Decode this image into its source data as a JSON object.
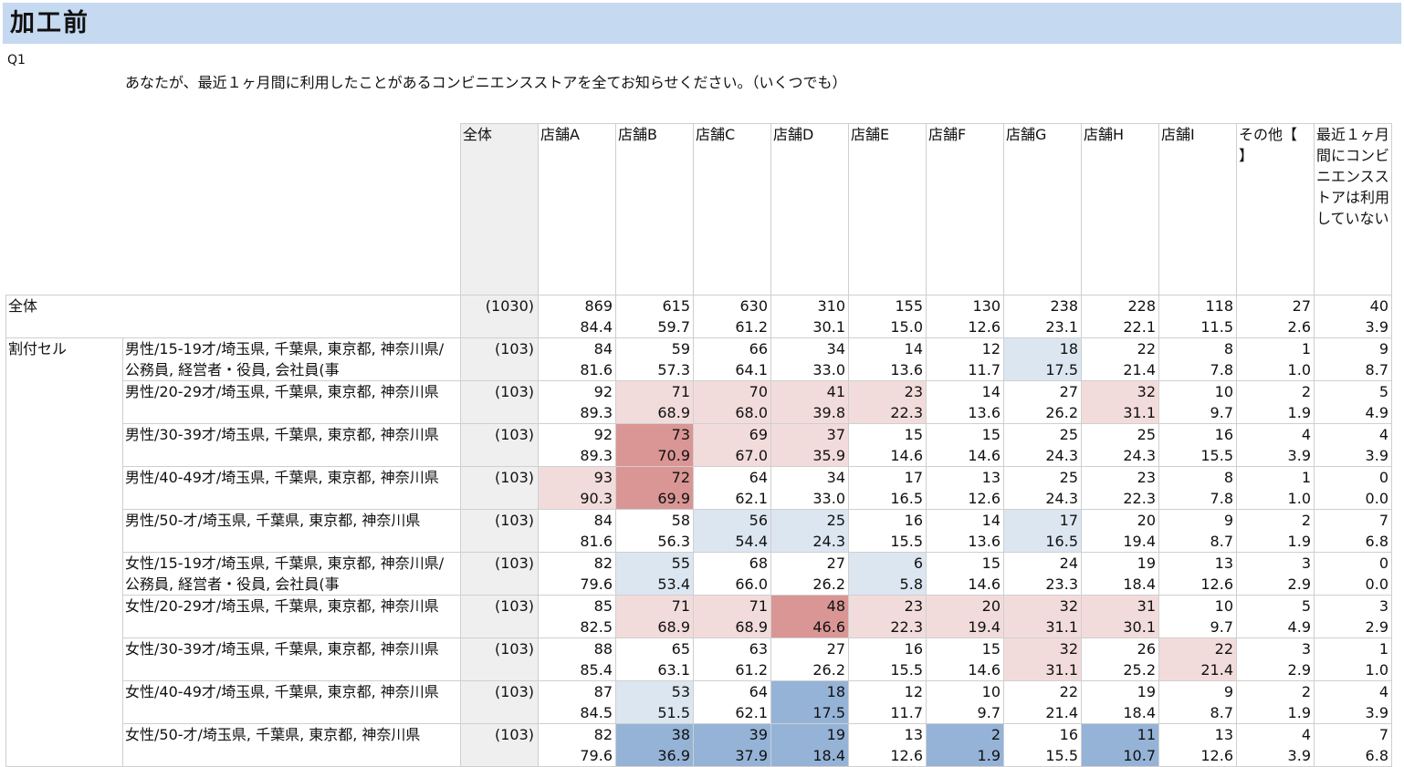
{
  "banner": {
    "title": "加工前"
  },
  "question": {
    "id": "Q1",
    "text": "あなたが、最近１ヶ月間に利用したことがあるコンビニエンスストアを全てお知らせください。（いくつでも）"
  },
  "table": {
    "total_header": "全体",
    "columns": [
      "店舗A",
      "店舗B",
      "店舗C",
      "店舗D",
      "店舗E",
      "店舗F",
      "店舗G",
      "店舗H",
      "店舗I",
      "その他【　　】",
      "最近１ヶ月間にコンビニエンスストアは利用していない"
    ],
    "overall": {
      "label": "全体",
      "base": "(1030)",
      "counts": [
        "869",
        "615",
        "630",
        "310",
        "155",
        "130",
        "238",
        "228",
        "118",
        "27",
        "40"
      ],
      "pcts": [
        "84.4",
        "59.7",
        "61.2",
        "30.1",
        "15.0",
        "12.6",
        "23.1",
        "22.1",
        "11.5",
        "2.6",
        "3.9"
      ]
    },
    "group_label": "割付セル",
    "rows": [
      {
        "label": "男性/15-19才/埼玉県, 千葉県, 東京都, 神奈川県/公務員, 経営者・役員, 会社員(事",
        "base": "(103)",
        "counts": [
          "84",
          "59",
          "66",
          "34",
          "14",
          "12",
          "18",
          "22",
          "8",
          "1",
          "9"
        ],
        "pcts": [
          "81.6",
          "57.3",
          "64.1",
          "33.0",
          "13.6",
          "11.7",
          "17.5",
          "21.4",
          "7.8",
          "1.0",
          "8.7"
        ],
        "shade": [
          "",
          "",
          "",
          "",
          "",
          "",
          "bl",
          "",
          "",
          "",
          ""
        ]
      },
      {
        "label": "男性/20-29才/埼玉県, 千葉県, 東京都, 神奈川県",
        "base": "(103)",
        "counts": [
          "92",
          "71",
          "70",
          "41",
          "23",
          "14",
          "27",
          "32",
          "10",
          "2",
          "5"
        ],
        "pcts": [
          "89.3",
          "68.9",
          "68.0",
          "39.8",
          "22.3",
          "13.6",
          "26.2",
          "31.1",
          "9.7",
          "1.9",
          "4.9"
        ],
        "shade": [
          "",
          "rl",
          "rl",
          "rl",
          "rl",
          "",
          "",
          "rl",
          "",
          "",
          ""
        ]
      },
      {
        "label": "男性/30-39才/埼玉県, 千葉県, 東京都, 神奈川県",
        "base": "(103)",
        "counts": [
          "92",
          "73",
          "69",
          "37",
          "15",
          "15",
          "25",
          "25",
          "16",
          "4",
          "4"
        ],
        "pcts": [
          "89.3",
          "70.9",
          "67.0",
          "35.9",
          "14.6",
          "14.6",
          "24.3",
          "24.3",
          "15.5",
          "3.9",
          "3.9"
        ],
        "shade": [
          "",
          "rd",
          "rl",
          "rl",
          "",
          "",
          "",
          "",
          "",
          "",
          ""
        ]
      },
      {
        "label": "男性/40-49才/埼玉県, 千葉県, 東京都, 神奈川県",
        "base": "(103)",
        "counts": [
          "93",
          "72",
          "64",
          "34",
          "17",
          "13",
          "25",
          "23",
          "8",
          "1",
          "0"
        ],
        "pcts": [
          "90.3",
          "69.9",
          "62.1",
          "33.0",
          "16.5",
          "12.6",
          "24.3",
          "22.3",
          "7.8",
          "1.0",
          "0.0"
        ],
        "shade": [
          "rl",
          "rd",
          "",
          "",
          "",
          "",
          "",
          "",
          "",
          "",
          ""
        ]
      },
      {
        "label": "男性/50-才/埼玉県, 千葉県, 東京都, 神奈川県",
        "base": "(103)",
        "counts": [
          "84",
          "58",
          "56",
          "25",
          "16",
          "14",
          "17",
          "20",
          "9",
          "2",
          "7"
        ],
        "pcts": [
          "81.6",
          "56.3",
          "54.4",
          "24.3",
          "15.5",
          "13.6",
          "16.5",
          "19.4",
          "8.7",
          "1.9",
          "6.8"
        ],
        "shade": [
          "",
          "",
          "bl",
          "bl",
          "",
          "",
          "bl",
          "",
          "",
          "",
          ""
        ]
      },
      {
        "label": "女性/15-19才/埼玉県, 千葉県, 東京都, 神奈川県/公務員, 経営者・役員, 会社員(事",
        "base": "(103)",
        "counts": [
          "82",
          "55",
          "68",
          "27",
          "6",
          "15",
          "24",
          "19",
          "13",
          "3",
          "0"
        ],
        "pcts": [
          "79.6",
          "53.4",
          "66.0",
          "26.2",
          "5.8",
          "14.6",
          "23.3",
          "18.4",
          "12.6",
          "2.9",
          "0.0"
        ],
        "shade": [
          "",
          "bl",
          "",
          "",
          "bl",
          "",
          "",
          "",
          "",
          "",
          ""
        ]
      },
      {
        "label": "女性/20-29才/埼玉県, 千葉県, 東京都, 神奈川県",
        "base": "(103)",
        "counts": [
          "85",
          "71",
          "71",
          "48",
          "23",
          "20",
          "32",
          "31",
          "10",
          "5",
          "3"
        ],
        "pcts": [
          "82.5",
          "68.9",
          "68.9",
          "46.6",
          "22.3",
          "19.4",
          "31.1",
          "30.1",
          "9.7",
          "4.9",
          "2.9"
        ],
        "shade": [
          "",
          "rl",
          "rl",
          "rd",
          "rl",
          "rl",
          "rl",
          "rl",
          "",
          "",
          ""
        ]
      },
      {
        "label": "女性/30-39才/埼玉県, 千葉県, 東京都, 神奈川県",
        "base": "(103)",
        "counts": [
          "88",
          "65",
          "63",
          "27",
          "16",
          "15",
          "32",
          "26",
          "22",
          "3",
          "1"
        ],
        "pcts": [
          "85.4",
          "63.1",
          "61.2",
          "26.2",
          "15.5",
          "14.6",
          "31.1",
          "25.2",
          "21.4",
          "2.9",
          "1.0"
        ],
        "shade": [
          "",
          "",
          "",
          "",
          "",
          "",
          "rl",
          "",
          "rl",
          "",
          ""
        ]
      },
      {
        "label": "女性/40-49才/埼玉県, 千葉県, 東京都, 神奈川県",
        "base": "(103)",
        "counts": [
          "87",
          "53",
          "64",
          "18",
          "12",
          "10",
          "22",
          "19",
          "9",
          "2",
          "4"
        ],
        "pcts": [
          "84.5",
          "51.5",
          "62.1",
          "17.5",
          "11.7",
          "9.7",
          "21.4",
          "18.4",
          "8.7",
          "1.9",
          "3.9"
        ],
        "shade": [
          "",
          "bl",
          "",
          "bd",
          "",
          "",
          "",
          "",
          "",
          "",
          ""
        ]
      },
      {
        "label": "女性/50-才/埼玉県, 千葉県, 東京都, 神奈川県",
        "base": "(103)",
        "counts": [
          "82",
          "38",
          "39",
          "19",
          "13",
          "2",
          "16",
          "11",
          "13",
          "4",
          "7"
        ],
        "pcts": [
          "79.6",
          "36.9",
          "37.9",
          "18.4",
          "12.6",
          "1.9",
          "15.5",
          "10.7",
          "12.6",
          "3.9",
          "6.8"
        ],
        "shade": [
          "",
          "bd",
          "bd",
          "bd",
          "",
          "bd",
          "",
          "bd",
          "",
          "",
          ""
        ]
      }
    ]
  },
  "colors": {
    "banner": "#c5d9f1",
    "red_dark": "#d99694",
    "red_light": "#f2dcdb",
    "blue_dark": "#95b3d7",
    "blue_light": "#dce6f1",
    "base_col": "#efefef"
  }
}
